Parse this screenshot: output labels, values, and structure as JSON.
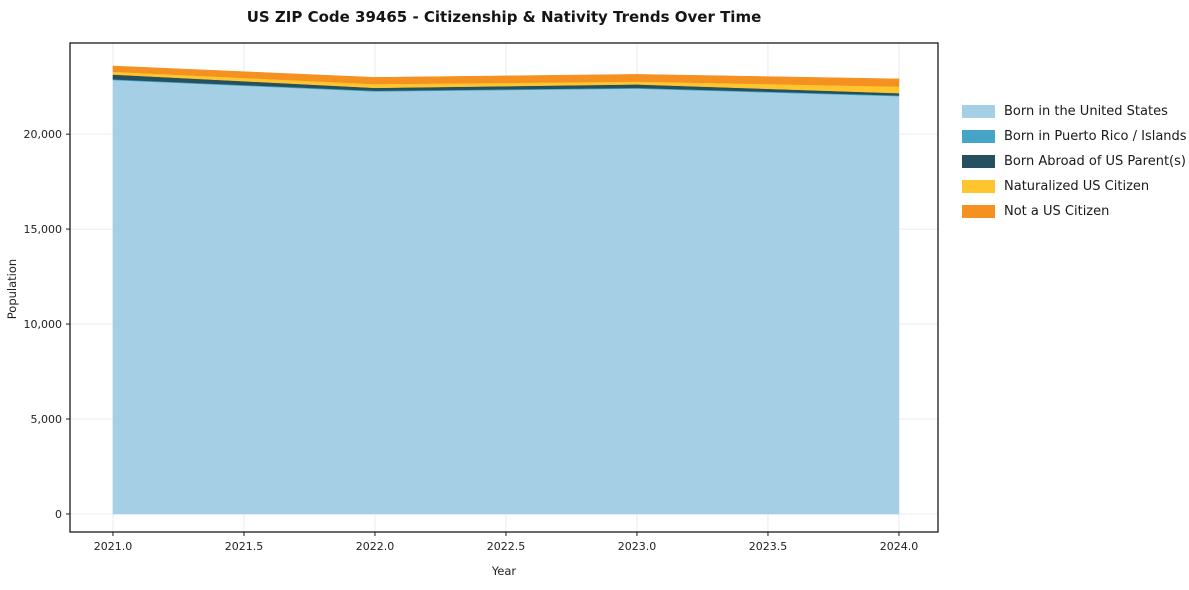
{
  "title": "US ZIP Code 39465 - Citizenship & Nativity Trends Over Time",
  "chart_data": {
    "type": "area",
    "stacked": true,
    "title": "US ZIP Code 39465 - Citizenship & Nativity Trends Over Time",
    "xlabel": "Year",
    "ylabel": "Population",
    "x": [
      2021,
      2022,
      2023,
      2024
    ],
    "series": [
      {
        "name": "Born in the United States",
        "color": "#a5cfe4",
        "values": [
          22850,
          22250,
          22400,
          22000
        ]
      },
      {
        "name": "Born in Puerto Rico / Islands",
        "color": "#45a5c6",
        "values": [
          40,
          40,
          40,
          40
        ]
      },
      {
        "name": "Born Abroad of US Parent(s)",
        "color": "#24505f",
        "values": [
          250,
          150,
          180,
          120
        ]
      },
      {
        "name": "Naturalized US Citizen",
        "color": "#fec52e",
        "values": [
          150,
          200,
          150,
          350
        ]
      },
      {
        "name": "Not a US Citizen",
        "color": "#f59120",
        "values": [
          300,
          350,
          380,
          400
        ]
      }
    ],
    "xlim": [
      2020.836,
      2024.149
    ],
    "ylim": [
      -950,
      24800
    ],
    "xticks": [
      2021.0,
      2021.5,
      2022.0,
      2022.5,
      2023.0,
      2023.5,
      2024.0
    ],
    "yticks": [
      0,
      5000,
      10000,
      15000,
      20000
    ],
    "grid": true,
    "grid_color": "#ebebf0",
    "frame_color": "#1a1a1a",
    "legend_position": "right"
  }
}
